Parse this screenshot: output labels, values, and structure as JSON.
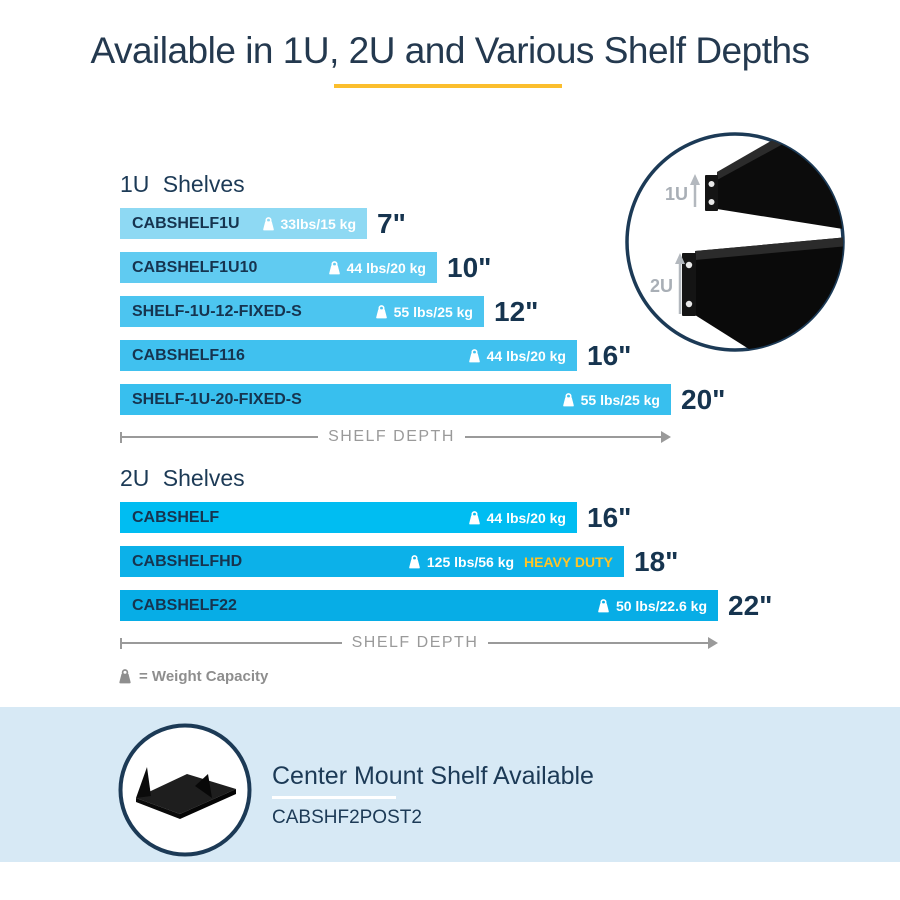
{
  "title": "Available in 1U, 2U and Various Shelf Depths",
  "colors": {
    "navy_text": "#1C3A56",
    "accent_yellow": "#FBBE2D",
    "heavy_duty_yellow": "#FFC425",
    "axis_gray": "#9A9A9A",
    "legend_gray": "#8E8E8E",
    "band_blue": "#D7E9F5"
  },
  "chart_data": [
    {
      "type": "bar",
      "orientation": "horizontal",
      "title": "1U Shelves",
      "categories": [
        "CABSHELF1U",
        "CABSHELF1U10",
        "SHELF-1U-12-FIXED-S",
        "CABSHELF116",
        "SHELF-1U-20-FIXED-S"
      ],
      "values": [
        7,
        10,
        12,
        16,
        20
      ],
      "unit": "inches",
      "value_labels": [
        "7\"",
        "10\"",
        "12\"",
        "16\"",
        "20\""
      ],
      "weight_capacity": [
        "33lbs/15 kg",
        "44 lbs/20 kg",
        "55 lbs/25 kg",
        "44 lbs/20 kg",
        "55 lbs/25 kg"
      ],
      "badges": [
        "",
        "",
        "",
        "",
        ""
      ],
      "bar_colors": [
        "#8ED9F3",
        "#60CBF1",
        "#4CC5F0",
        "#40C1EF",
        "#38BFEE"
      ],
      "xlabel": "SHELF DEPTH",
      "xlim": [
        0,
        22
      ]
    },
    {
      "type": "bar",
      "orientation": "horizontal",
      "title": "2U Shelves",
      "categories": [
        "CABSHELF",
        "CABSHELFHD",
        "CABSHELF22"
      ],
      "values": [
        16,
        18,
        22
      ],
      "unit": "inches",
      "value_labels": [
        "16\"",
        "18\"",
        "22\""
      ],
      "weight_capacity": [
        "44 lbs/20 kg",
        "125 lbs/56 kg",
        "50 lbs/22.6 kg"
      ],
      "badges": [
        "",
        "HEAVY DUTY",
        ""
      ],
      "bar_colors": [
        "#00BDF2",
        "#0CB1E9",
        "#07ADE6"
      ],
      "xlabel": "SHELF DEPTH",
      "xlim": [
        0,
        22
      ]
    }
  ],
  "legend": {
    "icon": "weight-icon",
    "label": "= Weight Capacity"
  },
  "detail_circle": {
    "labels": [
      "1U",
      "2U"
    ]
  },
  "footer": {
    "heading": "Center Mount Shelf Available",
    "model": "CABSHF2POST2"
  }
}
